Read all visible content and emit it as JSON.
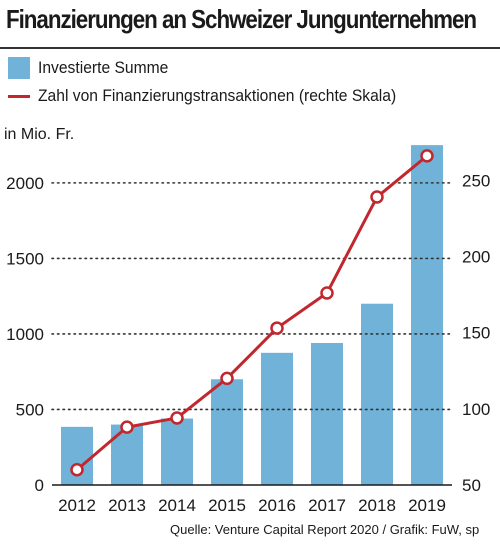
{
  "title": "Finanzierungen an Schweizer Jungunternehmen",
  "legend": {
    "bars": "Investierte Summe",
    "line": "Zahl von Finanzierungstransaktionen (rechte Skala)"
  },
  "unit_label": "in Mio. Fr.",
  "source": "Quelle: Venture Capital Report 2020 / Grafik: FuW, sp",
  "colors": {
    "bar": "#71b3d8",
    "line": "#c1272d",
    "grid": "#333333"
  },
  "chart_data": {
    "type": "bar+line",
    "categories": [
      "2012",
      "2013",
      "2014",
      "2015",
      "2016",
      "2017",
      "2018",
      "2019"
    ],
    "series": [
      {
        "name": "Investierte Summe",
        "type": "bar",
        "axis": "left",
        "values": [
          385,
          400,
          440,
          700,
          875,
          940,
          1200,
          2250
        ]
      },
      {
        "name": "Zahl von Finanzierungstransaktionen (rechte Skala)",
        "type": "line",
        "axis": "right",
        "values": [
          60,
          88,
          94,
          120,
          153,
          176,
          239,
          266
        ]
      }
    ],
    "y_left": {
      "min": 0,
      "max": 2350,
      "ticks": [
        0,
        500,
        1000,
        1500,
        2000
      ]
    },
    "y_right": {
      "min": 50,
      "max": 283,
      "ticks": [
        50,
        100,
        150,
        200,
        250
      ]
    },
    "grid": "dotted horizontal at left-axis ticks"
  }
}
